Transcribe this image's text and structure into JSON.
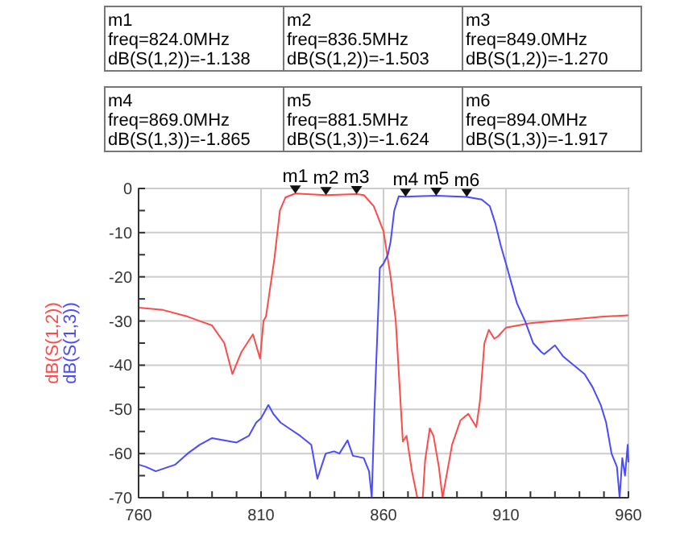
{
  "chart_data": {
    "type": "line",
    "xlim": [
      760,
      960
    ],
    "xticks": [
      760,
      {
        "value": 770,
        "label": null
      },
      {
        "value": 780,
        "label": null
      },
      {
        "value": 790,
        "label": null
      },
      {
        "value": 800,
        "label": null
      },
      810,
      {
        "value": 820,
        "label": null
      },
      {
        "value": 830,
        "label": null
      },
      {
        "value": 840,
        "label": null
      },
      {
        "value": 850,
        "label": null
      },
      860,
      {
        "value": 870,
        "label": null
      },
      {
        "value": 880,
        "label": null
      },
      {
        "value": 890,
        "label": null
      },
      {
        "value": 900,
        "label": null
      },
      910,
      {
        "value": 920,
        "label": null
      },
      {
        "value": 930,
        "label": null
      },
      {
        "value": 940,
        "label": null
      },
      {
        "value": 950,
        "label": null
      },
      960
    ],
    "ylim": [
      -70,
      0
    ],
    "yticks": [
      -70,
      {
        "value": -65,
        "label": null
      },
      -60,
      {
        "value": -55,
        "label": null
      },
      -50,
      {
        "value": -45,
        "label": null
      },
      -40,
      {
        "value": -35,
        "label": null
      },
      -30,
      {
        "value": -25,
        "label": null
      },
      -20,
      {
        "value": -15,
        "label": null
      },
      -10,
      {
        "value": -5,
        "label": null
      },
      0
    ],
    "grid": true,
    "legend": "left",
    "line_style": "solid",
    "series": [
      {
        "name": "dB(S(1,2))",
        "color": "#ff4a4a",
        "x": [
          760,
          770,
          780,
          785,
          790,
          795,
          798.3,
          802,
          806.7,
          809.6,
          811,
          812,
          815.5,
          817.7,
          820,
          824,
          836.5,
          849,
          852,
          856,
          860,
          862.9,
          865,
          867.9,
          869.4,
          871.6,
          873.8,
          876,
          877,
          878.9,
          880.4,
          882.6,
          884.1,
          885.4,
          888,
          891.4,
          894.6,
          897.9,
          899.4,
          901.2,
          903,
          905.2,
          906.7,
          910,
          920,
          930,
          940,
          950,
          960
        ],
        "values": [
          -27,
          -27.5,
          -29,
          -30,
          -31,
          -35,
          -42,
          -37,
          -33,
          -38.5,
          -30,
          -29,
          -15.7,
          -5,
          -2,
          -1.138,
          -1.503,
          -1.27,
          -1.5,
          -4,
          -9.7,
          -20,
          -30,
          -57.3,
          -56,
          -64,
          -70,
          -70,
          -61.5,
          -54.3,
          -56,
          -63,
          -70,
          -66,
          -58,
          -52.5,
          -51,
          -54,
          -48,
          -35,
          -32,
          -34,
          -33.5,
          -31.5,
          -30.5,
          -30,
          -29.5,
          -29,
          -28.7
        ]
      },
      {
        "name": "dB(S(1,3))",
        "color": "#4a4aff",
        "x": [
          760,
          763,
          767,
          775,
          780,
          785,
          790,
          795,
          800,
          805,
          808,
          810,
          813,
          815,
          818,
          822,
          826,
          830.5,
          833,
          836.4,
          839.8,
          842,
          845.3,
          847.5,
          851.9,
          854.1,
          855.2,
          856.3,
          858.5,
          860,
          861.8,
          862.9,
          864.4,
          866.2,
          869,
          881.5,
          894,
          900.1,
          903.4,
          905.7,
          907.9,
          910,
          914.5,
          917.8,
          921.1,
          924.4,
          925.6,
          930,
          933.3,
          937.7,
          942.1,
          945.4,
          948.7,
          950.9,
          953.1,
          955.3,
          956.4,
          957.5,
          958.6,
          959.7,
          960
        ],
        "values": [
          -62.5,
          -63,
          -64,
          -62.5,
          -60,
          -58,
          -56.5,
          -57,
          -57.5,
          -56,
          -53,
          -52,
          -49,
          -51,
          -53,
          -54.5,
          -56,
          -58,
          -65.7,
          -60,
          -59.5,
          -60,
          -57,
          -60.5,
          -61,
          -64,
          -70,
          -50,
          -18,
          -17,
          -15,
          -12,
          -5,
          -1.8,
          -1.865,
          -1.624,
          -1.917,
          -2.5,
          -4,
          -8,
          -13,
          -17,
          -26,
          -30,
          -35,
          -37,
          -37.5,
          -35.5,
          -38,
          -40,
          -42,
          -45,
          -49,
          -53,
          -60,
          -63,
          -70,
          -61,
          -65,
          -58,
          -62
        ]
      }
    ],
    "annotations": [
      {
        "text": "m1",
        "x": 824,
        "y": -1.138
      },
      {
        "text": "m2",
        "x": 836.5,
        "y": -1.503
      },
      {
        "text": "m3",
        "x": 849,
        "y": -1.27
      },
      {
        "text": "m4",
        "x": 869,
        "y": -1.865
      },
      {
        "text": "m5",
        "x": 881.5,
        "y": -1.624
      },
      {
        "text": "m6",
        "x": 894,
        "y": -1.917
      },
      "m1\nfreq=824.0MHz\ndB(S(1,2))=-1.138",
      "m2\nfreq=836.5MHz\ndB(S(1,2))=-1.503",
      "m3\nfreq=849.0MHz\ndB(S(1,2))=-1.270",
      "m4\nfreq=869.0MHz\ndB(S(1,3))=-1.865",
      "m5\nfreq=881.5MHz\ndB(S(1,3))=-1.624",
      "m6\nfreq=894.0MHz\ndB(S(1,3))=-1.917"
    ]
  }
}
